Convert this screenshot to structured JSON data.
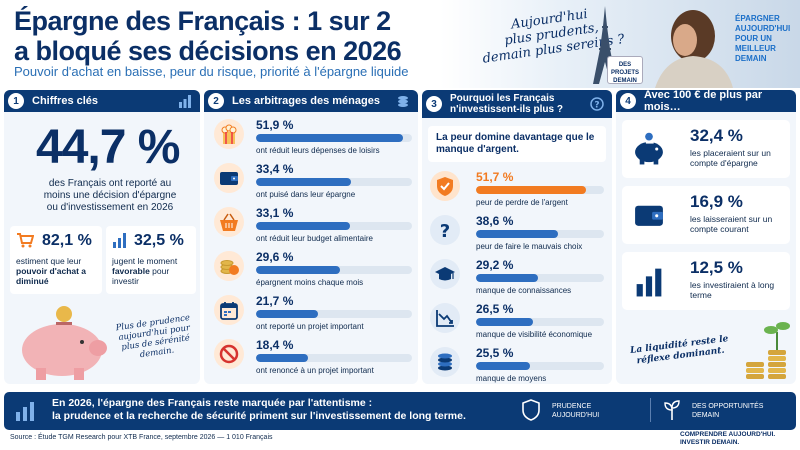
{
  "header": {
    "title_line1": "Épargne des Français : 1 sur 2",
    "title_line2": "a bloqué ses décisions en 2026",
    "subtitle": "Pouvoir d'achat en baisse, peur du risque, priorité à l'épargne liquide",
    "quote_line1": "Aujourd'hui",
    "quote_line2": "plus prudents,",
    "quote_line3": "demain plus sereins ?",
    "mug_text": "DES PROJETS DEMAIN",
    "slogan": "ÉPARGNER AUJOURD'HUI POUR UN MEILLEUR DEMAIN"
  },
  "col1": {
    "number": "1",
    "title": "Chiffres clés",
    "big_value": "44,7 %",
    "big_desc": "des Français ont reporté au moins une décision d'épargne ou d'investissement en 2026",
    "stat_a_value": "82,1 %",
    "stat_a_text1": "estiment que leur",
    "stat_a_bold": "pouvoir d'achat a diminué",
    "stat_b_value": "32,5 %",
    "stat_b_text1": "jugent le moment",
    "stat_b_bold": "favorable",
    "stat_b_text2": "pour investir",
    "piggy_caption": "Plus de prudence aujourd'hui pour plus de sérénité demain."
  },
  "col2": {
    "number": "2",
    "title": "Les arbitrages des ménages",
    "items": [
      {
        "pct": "51,9 %",
        "label": "ont réduit leurs dépenses de loisirs",
        "value": 51.9,
        "icon": "popcorn-icon"
      },
      {
        "pct": "33,4 %",
        "label": "ont puisé dans leur épargne",
        "value": 33.4,
        "icon": "wallet-icon"
      },
      {
        "pct": "33,1 %",
        "label": "ont réduit leur budget alimentaire",
        "value": 33.1,
        "icon": "basket-icon"
      },
      {
        "pct": "29,6 %",
        "label": "épargnent moins chaque mois",
        "value": 29.6,
        "icon": "coins-icon"
      },
      {
        "pct": "21,7 %",
        "label": "ont reporté un projet important",
        "value": 21.7,
        "icon": "calendar-icon"
      },
      {
        "pct": "18,4 %",
        "label": "ont renoncé à un projet important",
        "value": 18.4,
        "icon": "forbidden-icon"
      }
    ]
  },
  "col3": {
    "number": "3",
    "title_line1": "Pourquoi les Français",
    "title_line2": "n'investissent-ils plus ?",
    "intro": "La peur domine davantage que le manque d'argent.",
    "items": [
      {
        "pct": "51,7 %",
        "label": "peur de perdre de l'argent",
        "value": 51.7,
        "color": "#f27b21",
        "icon": "shield-icon"
      },
      {
        "pct": "38,6 %",
        "label": "peur de faire le mauvais choix",
        "value": 38.6,
        "color": "#2e6ec0",
        "icon": "question-icon"
      },
      {
        "pct": "29,2 %",
        "label": "manque de connaissances",
        "value": 29.2,
        "color": "#2e6ec0",
        "icon": "graduation-cap-icon"
      },
      {
        "pct": "26,5 %",
        "label": "manque de visibilité économique",
        "value": 26.5,
        "color": "#2e6ec0",
        "icon": "trend-down-icon"
      },
      {
        "pct": "25,5 %",
        "label": "manque de moyens",
        "value": 25.5,
        "color": "#2e6ec0",
        "icon": "coin-stack-icon"
      }
    ]
  },
  "col4": {
    "number": "4",
    "title": "Avec 100 € de plus par mois…",
    "items": [
      {
        "pct": "32,4 %",
        "label": "les placeraient sur un compte d'épargne",
        "icon": "piggy-bank-icon"
      },
      {
        "pct": "16,9 %",
        "label": "les laisseraient sur un compte courant",
        "icon": "wallet-icon"
      },
      {
        "pct": "12,5 %",
        "label": "les investiraient à long terme",
        "icon": "bar-chart-icon"
      }
    ],
    "caption": "La liquidité reste le réflexe dominant."
  },
  "footer": {
    "line1": "En 2026, l'épargne des Français reste marquée par l'attentisme :",
    "line2": "la prudence et la recherche de sécurité priment sur l'investissement de long terme.",
    "badge1": "PRUDENCE AUJOURD'HUI",
    "badge2": "DES OPPORTUNITÉS DEMAIN",
    "source": "Source : Étude TGM Research pour XTB France, septembre 2026 — 1 010 Français",
    "closing": "COMPRENDRE AUJOURD'HUI. INVESTIR DEMAIN."
  },
  "colors": {
    "navy": "#0b3a75",
    "blue": "#2e6ec0",
    "orange": "#f27b21"
  }
}
